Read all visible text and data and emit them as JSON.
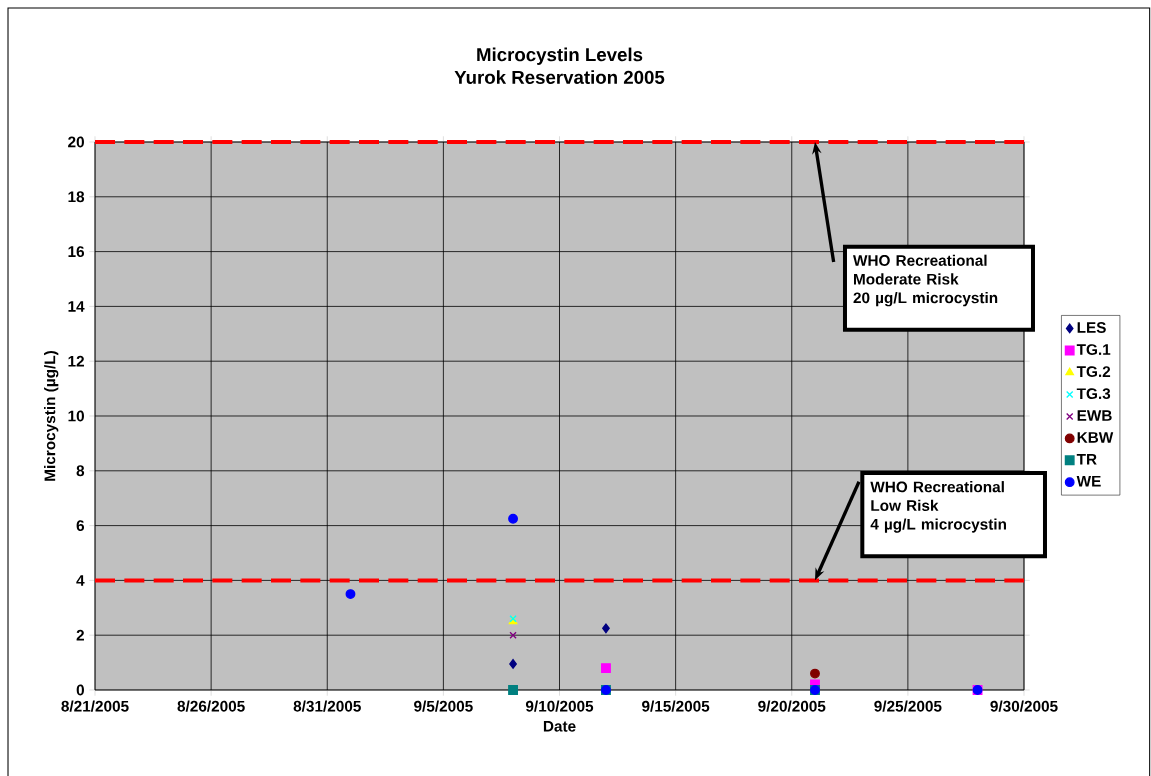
{
  "chart_data": {
    "type": "scatter",
    "title": "Microcystin Levels",
    "subtitle": "Yurok Reservation 2005",
    "xlabel": "Date",
    "ylabel": "Microcystin (µg/L)",
    "xlim": [
      "2005-08-21",
      "2005-09-30"
    ],
    "xticks": [
      {
        "value": "2005-08-21",
        "label": "8/21/2005"
      },
      {
        "value": "2005-08-26",
        "label": "8/26/2005"
      },
      {
        "value": "2005-08-31",
        "label": "8/31/2005"
      },
      {
        "value": "2005-09-05",
        "label": "9/5/2005"
      },
      {
        "value": "2005-09-10",
        "label": "9/10/2005"
      },
      {
        "value": "2005-09-15",
        "label": "9/15/2005"
      },
      {
        "value": "2005-09-20",
        "label": "9/20/2005"
      },
      {
        "value": "2005-09-25",
        "label": "9/25/2005"
      },
      {
        "value": "2005-09-30",
        "label": "9/30/2005"
      }
    ],
    "ylim": [
      0,
      20
    ],
    "yticks": [
      0,
      2,
      4,
      6,
      8,
      10,
      12,
      14,
      16,
      18,
      20
    ],
    "grid": true,
    "legend": "right",
    "series": [
      {
        "name": "LES",
        "color": "#000080",
        "marker": "diamond",
        "x": [
          "2005-09-08",
          "2005-09-12"
        ],
        "values": [
          0.95,
          2.25
        ]
      },
      {
        "name": "TG.1",
        "color": "#ff00ff",
        "marker": "square",
        "x": [
          "2005-09-12",
          "2005-09-21",
          "2005-09-28"
        ],
        "values": [
          0.8,
          0.2,
          0
        ]
      },
      {
        "name": "TG.2",
        "color": "#ffff00",
        "marker": "triangle",
        "x": [
          "2005-09-08"
        ],
        "values": [
          2.5
        ]
      },
      {
        "name": "TG.3",
        "color": "#00ffff",
        "marker": "cross",
        "x": [
          "2005-09-08"
        ],
        "values": [
          2.6
        ]
      },
      {
        "name": "EWB",
        "color": "#800080",
        "marker": "cross",
        "x": [
          "2005-09-08"
        ],
        "values": [
          2.0
        ]
      },
      {
        "name": "KBW",
        "color": "#800000",
        "marker": "circle",
        "x": [
          "2005-09-21"
        ],
        "values": [
          0.6
        ]
      },
      {
        "name": "TR",
        "color": "#008080",
        "marker": "square",
        "x": [
          "2005-09-08",
          "2005-09-12",
          "2005-09-21"
        ],
        "values": [
          0,
          0,
          0
        ]
      },
      {
        "name": "WE",
        "color": "#0000ff",
        "marker": "circle",
        "x": [
          "2005-09-01",
          "2005-09-08",
          "2005-09-12",
          "2005-09-21",
          "2005-09-28"
        ],
        "values": [
          3.5,
          6.25,
          0,
          0,
          0
        ]
      }
    ],
    "ref_lines": [
      {
        "axis": "y",
        "value": 20,
        "color": "#ff0000",
        "line_style": "dashed"
      },
      {
        "axis": "y",
        "value": 4,
        "color": "#ff0000",
        "line_style": "dashed"
      }
    ],
    "annotations": [
      {
        "text": "WHO Recreational Moderate Risk 20 µg/L microcystin",
        "x": "2005-09-21",
        "y": 20
      },
      {
        "text": "WHO Recreational Low Risk 4 µg/L microcystin",
        "x": "2005-09-21",
        "y": 4
      }
    ]
  }
}
